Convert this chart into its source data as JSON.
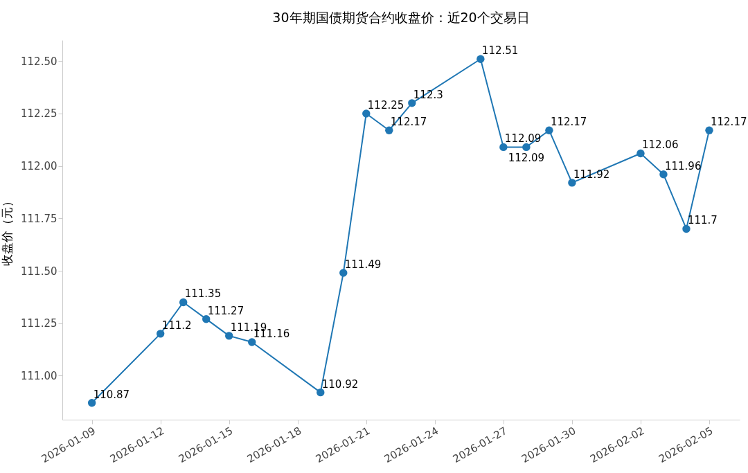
{
  "chart_data": {
    "type": "line",
    "title": "30年期国债期货合约收盘价：近20个交易日",
    "ylabel": "收盘价（元）",
    "x": [
      "2026-01-09",
      "2026-01-12",
      "2026-01-13",
      "2026-01-14",
      "2026-01-15",
      "2026-01-16",
      "2026-01-19",
      "2026-01-20",
      "2026-01-21",
      "2026-01-22",
      "2026-01-23",
      "2026-01-26",
      "2026-01-27",
      "2026-01-28",
      "2026-01-29",
      "2026-01-30",
      "2026-02-02",
      "2026-02-03",
      "2026-02-04",
      "2026-02-05"
    ],
    "series": [
      {
        "color": "#1f77b4",
        "values": [
          110.87,
          111.2,
          111.35,
          111.27,
          111.19,
          111.16,
          110.92,
          111.49,
          112.25,
          112.17,
          112.3,
          112.51,
          112.09,
          112.09,
          112.17,
          111.92,
          112.06,
          111.96,
          111.7,
          112.17
        ]
      }
    ],
    "xlim": [
      "2026-01-07T17:00",
      "2026-02-06T08:00"
    ],
    "xticks": [
      "2026-01-09",
      "2026-01-12",
      "2026-01-15",
      "2026-01-18",
      "2026-01-21",
      "2026-01-24",
      "2026-01-27",
      "2026-01-30",
      "2026-02-02",
      "2026-02-05"
    ],
    "ylim": [
      110.79,
      112.6
    ],
    "yticks": [
      {
        "value": 111,
        "label": "111.00"
      },
      {
        "value": 111.25,
        "label": "111.25"
      },
      {
        "value": 111.5,
        "label": "111.50"
      },
      {
        "value": 111.75,
        "label": "111.75"
      },
      {
        "value": 112,
        "label": "112.00"
      },
      {
        "value": 112.25,
        "label": "112.25"
      },
      {
        "value": 112.5,
        "label": "112.50"
      }
    ],
    "data_labels": true,
    "grid": false,
    "marker": "circle",
    "line_style": "solid"
  }
}
